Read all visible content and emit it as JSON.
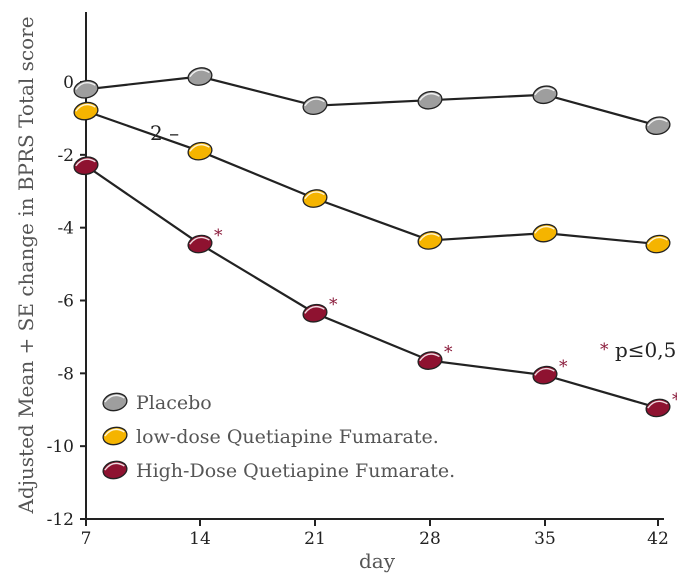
{
  "chart_data": {
    "type": "line",
    "title": "",
    "xlabel": "day",
    "ylabel": "Adjusted Mean + SE change in BPRS Total score",
    "x": [
      7,
      14,
      21,
      28,
      35,
      42
    ],
    "xticks": [
      "7",
      "14",
      "21",
      "28",
      "35",
      "42"
    ],
    "yticks": [
      "0",
      "-2",
      "-4",
      "-6",
      "-8",
      "-10",
      "-12"
    ],
    "ylim": [
      -12,
      2
    ],
    "grid": false,
    "legend_position": "bottom-left",
    "series": [
      {
        "name": "Placebo",
        "values": [
          -0.2,
          0.15,
          -0.65,
          -0.5,
          -0.35,
          -1.2
        ],
        "color": "#9e9e9e",
        "significant": [
          false,
          false,
          false,
          false,
          false,
          false
        ]
      },
      {
        "name": "low-dose Quetiapine Fumarate.",
        "values": [
          -0.8,
          -1.9,
          -3.2,
          -4.35,
          -4.15,
          -4.45
        ],
        "color": "#f5b400",
        "significant": [
          false,
          false,
          false,
          false,
          false,
          false
        ]
      },
      {
        "name": "High-Dose Quetiapine Fumarate.",
        "values": [
          -2.3,
          -4.45,
          -6.35,
          -7.65,
          -8.05,
          -8.95
        ],
        "color": "#8e1230",
        "significant": [
          false,
          true,
          true,
          true,
          true,
          true
        ]
      }
    ],
    "annotations": {
      "significance_label": "p≤0,5",
      "significance_marker": "*",
      "stray_label": "2 –"
    }
  }
}
